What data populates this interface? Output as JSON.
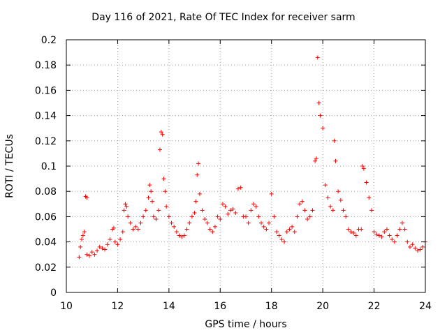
{
  "chart_data": {
    "type": "scatter",
    "title": "Day 116 of 2021, Rate Of TEC Index for receiver sarm",
    "xlabel": "GPS time / hours",
    "ylabel": "ROTI / TECUs",
    "xlim": [
      10,
      24
    ],
    "ylim": [
      0,
      0.2
    ],
    "xticks": [
      10,
      12,
      14,
      16,
      18,
      20,
      22,
      24
    ],
    "xtick_labels": [
      "10",
      "12",
      "14",
      "16",
      "18",
      "20",
      "22",
      "24"
    ],
    "yticks": [
      0,
      0.02,
      0.04,
      0.06,
      0.08,
      0.1,
      0.12,
      0.14,
      0.16,
      0.18,
      0.2
    ],
    "ytick_labels": [
      "0",
      "0.02",
      "0.04",
      "0.06",
      "0.08",
      "0.1",
      "0.12",
      "0.14",
      "0.16",
      "0.18",
      "0.2"
    ],
    "grid": true,
    "marker": "+",
    "color": "#ff0000",
    "series": [
      {
        "name": "ROTI",
        "x": [
          10.5,
          10.55,
          10.6,
          10.65,
          10.7,
          10.75,
          10.8,
          10.8,
          10.9,
          11.0,
          11.1,
          11.2,
          11.3,
          11.4,
          11.5,
          11.6,
          11.7,
          11.8,
          11.85,
          11.9,
          12.0,
          12.1,
          12.2,
          12.25,
          12.3,
          12.35,
          12.4,
          12.5,
          12.6,
          12.7,
          12.8,
          12.9,
          13.0,
          13.1,
          13.2,
          13.25,
          13.3,
          13.35,
          13.4,
          13.5,
          13.6,
          13.65,
          13.7,
          13.75,
          13.8,
          13.85,
          13.9,
          14.0,
          14.1,
          14.2,
          14.3,
          14.4,
          14.5,
          14.6,
          14.7,
          14.8,
          14.9,
          15.0,
          15.05,
          15.1,
          15.15,
          15.2,
          15.3,
          15.4,
          15.5,
          15.6,
          15.7,
          15.8,
          15.9,
          16.0,
          16.1,
          16.2,
          16.3,
          16.4,
          16.5,
          16.6,
          16.7,
          16.8,
          16.9,
          17.0,
          17.1,
          17.2,
          17.3,
          17.4,
          17.5,
          17.6,
          17.7,
          17.8,
          17.9,
          18.0,
          18.1,
          18.2,
          18.3,
          18.4,
          18.5,
          18.6,
          18.7,
          18.8,
          18.9,
          19.0,
          19.1,
          19.2,
          19.3,
          19.4,
          19.5,
          19.6,
          19.7,
          19.75,
          19.8,
          19.85,
          19.9,
          20.0,
          20.1,
          20.2,
          20.3,
          20.4,
          20.45,
          20.5,
          20.6,
          20.7,
          20.8,
          20.9,
          21.0,
          21.1,
          21.2,
          21.3,
          21.4,
          21.5,
          21.55,
          21.6,
          21.7,
          21.8,
          21.9,
          22.0,
          22.1,
          22.2,
          22.3,
          22.4,
          22.5,
          22.6,
          22.7,
          22.8,
          22.9,
          23.0,
          23.1,
          23.2,
          23.3,
          23.4,
          23.5,
          23.6,
          23.7,
          23.8,
          23.9,
          24.0
        ],
        "y": [
          0.028,
          0.036,
          0.042,
          0.045,
          0.048,
          0.076,
          0.075,
          0.03,
          0.029,
          0.032,
          0.03,
          0.033,
          0.036,
          0.035,
          0.034,
          0.038,
          0.042,
          0.05,
          0.051,
          0.04,
          0.038,
          0.042,
          0.048,
          0.065,
          0.07,
          0.068,
          0.06,
          0.055,
          0.05,
          0.052,
          0.05,
          0.055,
          0.06,
          0.065,
          0.075,
          0.085,
          0.08,
          0.072,
          0.06,
          0.058,
          0.065,
          0.113,
          0.127,
          0.125,
          0.09,
          0.08,
          0.068,
          0.06,
          0.055,
          0.052,
          0.048,
          0.045,
          0.044,
          0.045,
          0.05,
          0.055,
          0.06,
          0.063,
          0.072,
          0.093,
          0.102,
          0.078,
          0.065,
          0.058,
          0.055,
          0.05,
          0.048,
          0.052,
          0.06,
          0.058,
          0.07,
          0.068,
          0.062,
          0.065,
          0.066,
          0.063,
          0.082,
          0.083,
          0.06,
          0.06,
          0.055,
          0.065,
          0.07,
          0.068,
          0.06,
          0.055,
          0.052,
          0.05,
          0.055,
          0.078,
          0.06,
          0.048,
          0.045,
          0.042,
          0.04,
          0.048,
          0.05,
          0.052,
          0.048,
          0.06,
          0.07,
          0.072,
          0.065,
          0.058,
          0.06,
          0.065,
          0.104,
          0.106,
          0.186,
          0.15,
          0.14,
          0.13,
          0.085,
          0.075,
          0.068,
          0.065,
          0.12,
          0.104,
          0.08,
          0.073,
          0.065,
          0.06,
          0.05,
          0.048,
          0.047,
          0.045,
          0.05,
          0.05,
          0.1,
          0.098,
          0.087,
          0.075,
          0.065,
          0.048,
          0.046,
          0.045,
          0.044,
          0.048,
          0.05,
          0.045,
          0.042,
          0.04,
          0.045,
          0.05,
          0.055,
          0.05,
          0.04,
          0.036,
          0.038,
          0.035,
          0.033,
          0.034,
          0.036,
          0.04
        ]
      }
    ]
  }
}
